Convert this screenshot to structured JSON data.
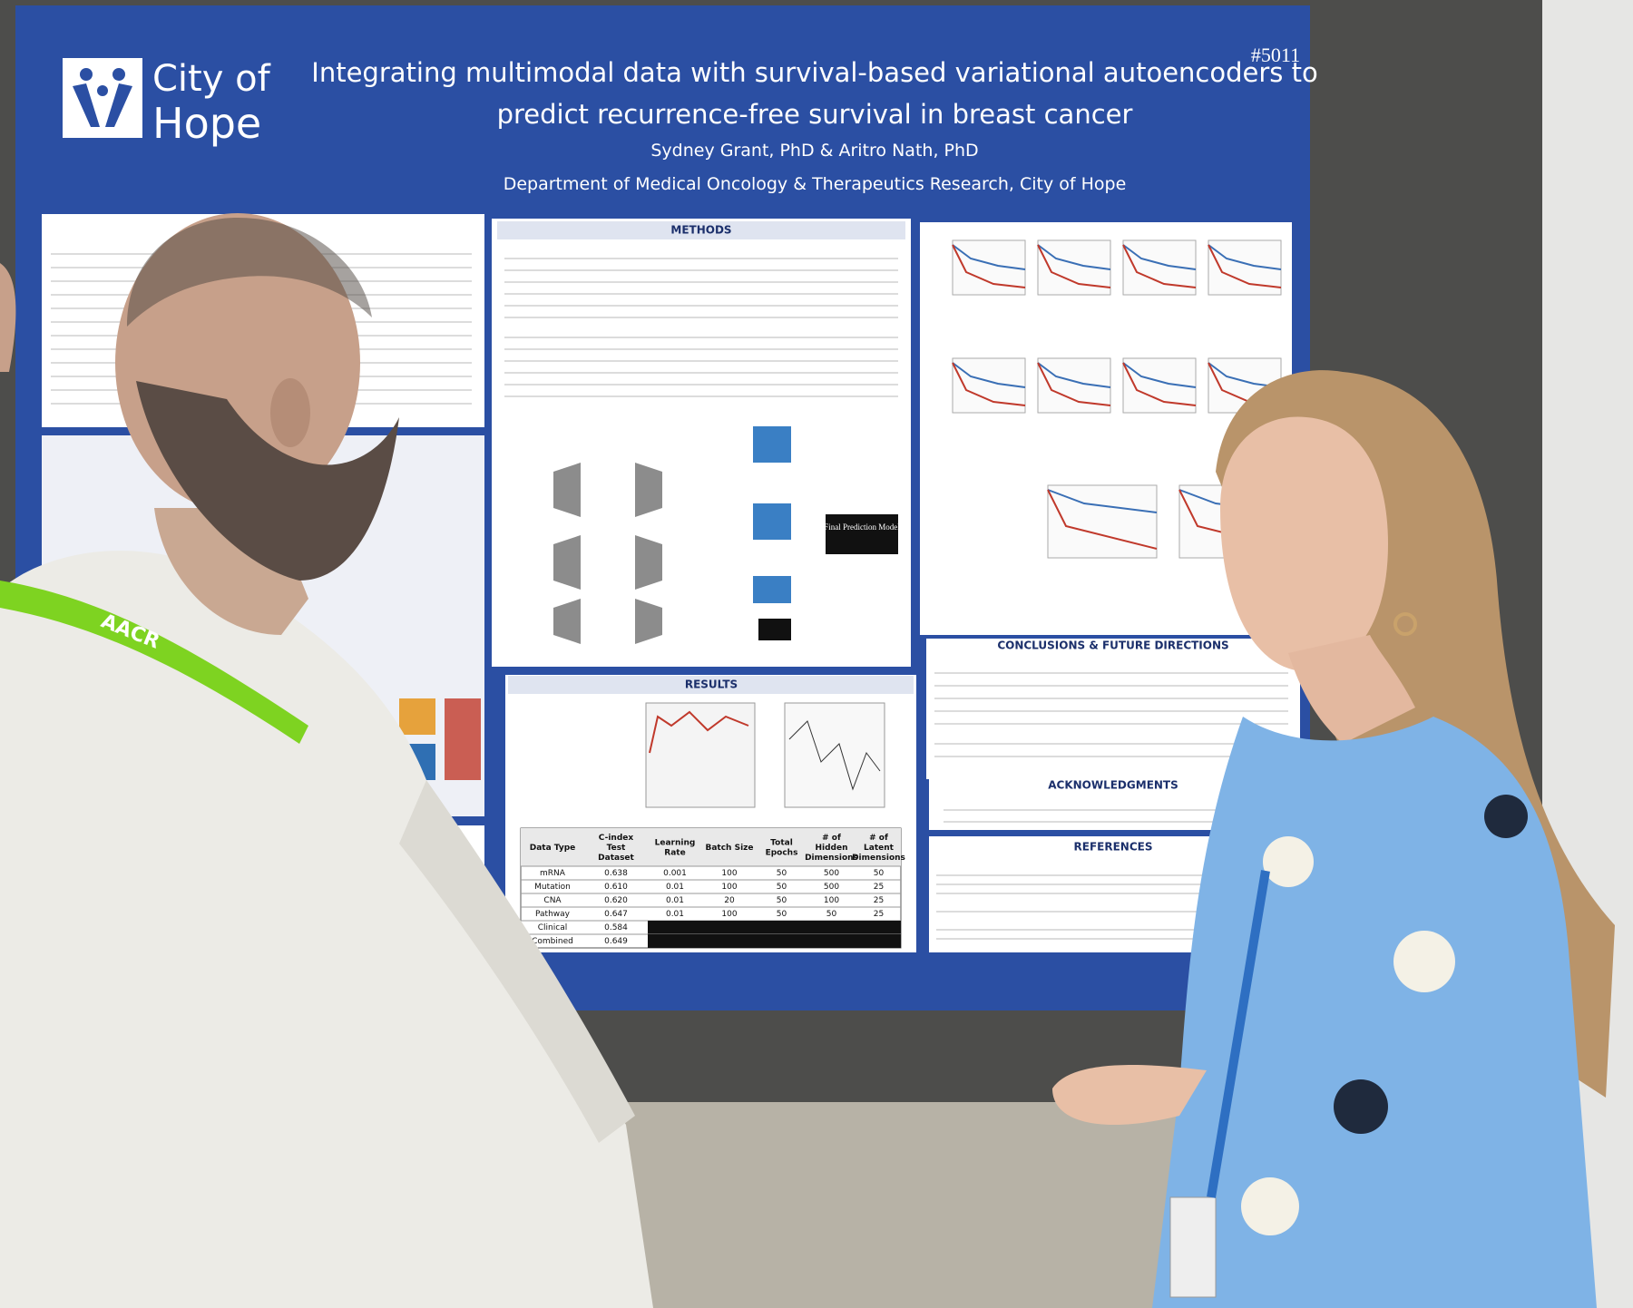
{
  "poster": {
    "number": "#5011",
    "logo": {
      "line1": "City of",
      "line2": "Hope"
    },
    "title_lines": [
      "Integrating multimodal data with survival-based variational autoencoders to",
      "predict recurrence-free survival in breast cancer"
    ],
    "authors": "Sydney Grant, PhD & Aritro Nath, PhD",
    "department": "Department of Medical Oncology & Therapeutics Research, City of Hope",
    "sections": {
      "methods": "METHODS",
      "results": "RESULTS",
      "conclusions": "CONCLUSIONS & FUTURE DIRECTIONS",
      "acknowledgments": "ACKNOWLEDGMENTS",
      "references": "REFERENCES"
    },
    "final_model": "Final Prediction Model",
    "table": {
      "headers": [
        "Data Type",
        "C-index Test Dataset",
        "Learning Rate",
        "Batch Size",
        "Total Epochs",
        "# of Hidden Dimensions",
        "# of Latent Dimensions"
      ],
      "rows": [
        [
          "mRNA",
          "0.638",
          "0.001",
          "100",
          "50",
          "500",
          "50"
        ],
        [
          "Mutation",
          "0.610",
          "0.01",
          "100",
          "50",
          "500",
          "25"
        ],
        [
          "CNA",
          "0.620",
          "0.01",
          "20",
          "50",
          "100",
          "25"
        ],
        [
          "Pathway",
          "0.647",
          "0.01",
          "100",
          "50",
          "50",
          "25"
        ],
        [
          "Clinical",
          "0.584"
        ],
        [
          "Combined",
          "0.649"
        ]
      ]
    }
  },
  "lanyard": "AACR"
}
